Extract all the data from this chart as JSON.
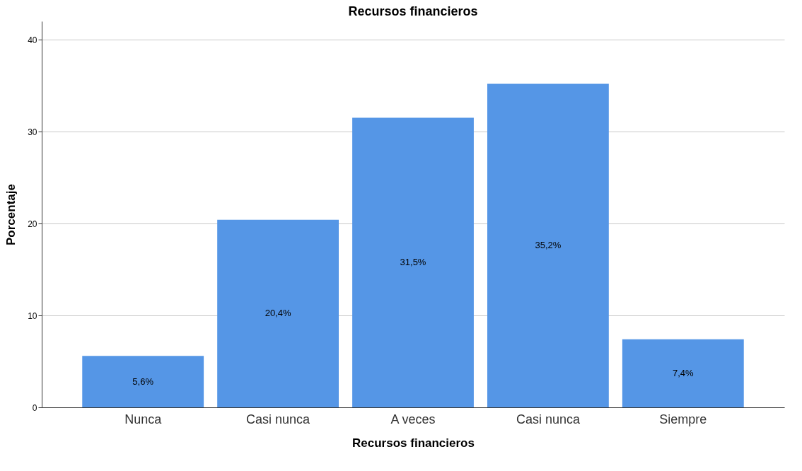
{
  "chart_data": {
    "type": "bar",
    "title": "Recursos financieros",
    "xlabel": "Recursos financieros",
    "ylabel": "Porcentaje",
    "categories": [
      "Nunca",
      "Casi nunca",
      "A veces",
      "Casi nunca",
      "Siempre"
    ],
    "values": [
      5.6,
      20.4,
      31.5,
      35.2,
      7.4
    ],
    "value_labels": [
      "5,6%",
      "20,4%",
      "31,5%",
      "35,2%",
      "7,4%"
    ],
    "color": "#5596e6",
    "ylim": [
      0,
      42
    ],
    "yticks": [
      0,
      10,
      20,
      30,
      40
    ],
    "grid": "y"
  }
}
